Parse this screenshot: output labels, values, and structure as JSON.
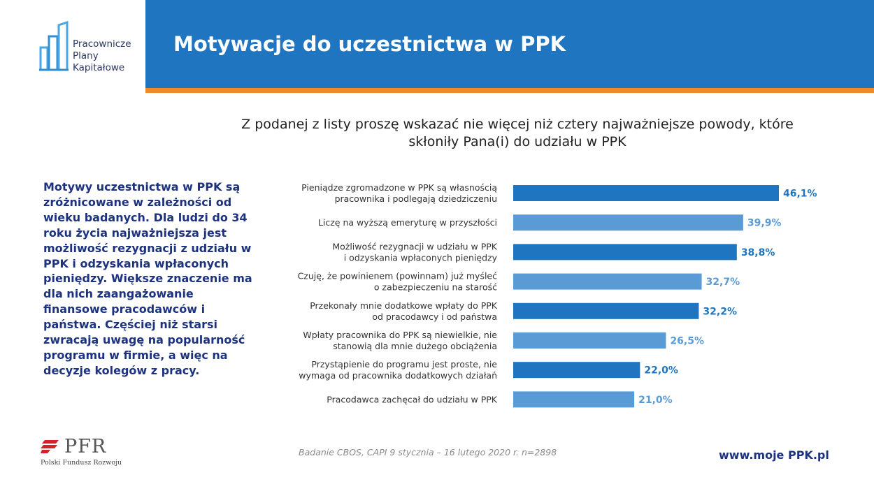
{
  "logo": {
    "lines": [
      "Pracownicze",
      "Plany",
      "Kapitałowe"
    ]
  },
  "header": {
    "title": "Motywacje do uczestnictwa w PPK"
  },
  "question": "Z podanej z listy proszę wskazać nie więcej niż cztery najważniejsze powody, które skłoniły Pana(i) do udziału w PPK",
  "side_text": "Motywy uczestnictwa w PPK są zróżnicowane w zależności od wieku badanych. Dla ludzi do 34 roku życia najważniejsza jest możliwość rezygnacji z udziału w PPK i odzyskania wpłaconych pieniędzy. Większe znaczenie ma dla nich zaangażowanie finansowe pracodawców i państwa. Częściej niż starsi zwracają uwagę na popularność programu w firmie, a więc na decyzje kolegów z pracy.",
  "colors": {
    "dark_blue": "#1f75bf",
    "light_blue": "#5b9bd5",
    "orange": "#f08a24",
    "navy": "#1d3380"
  },
  "chart_data": {
    "type": "bar",
    "orientation": "horizontal",
    "categories": [
      [
        "Pieniądze zgromadzone w PPK są własnością",
        "pracownika i podlegają dziedziczeniu"
      ],
      [
        "Liczę na wyższą emeryturę w przyszłości"
      ],
      [
        "Możliwość rezygnacji w udziału w PPK",
        "i odzyskania wpłaconych pieniędzy"
      ],
      [
        "Czuję, że powinienem (powinnam) już myśleć",
        "o zabezpieczeniu na starość"
      ],
      [
        "Przekonały mnie dodatkowe wpłaty do PPK",
        "od pracodawcy i od państwa"
      ],
      [
        "Wpłaty pracownika do PPK są niewielkie, nie",
        "stanowią dla mnie dużego obciążenia"
      ],
      [
        "Przystąpienie do programu jest proste, nie",
        "wymaga od pracownika dodatkowych działań"
      ],
      [
        "Pracodawca zachęcał do udziału w PPK"
      ]
    ],
    "values": [
      46.1,
      39.9,
      38.8,
      32.7,
      32.2,
      26.5,
      22.0,
      21.0
    ],
    "value_labels": [
      "46,1%",
      "39,9%",
      "38,8%",
      "32,7%",
      "32,2%",
      "26,5%",
      "22,0%",
      "21,0%"
    ],
    "bar_colors": [
      "dark",
      "light",
      "dark",
      "light",
      "dark",
      "light",
      "dark",
      "light"
    ],
    "xlim": [
      0,
      46.1
    ],
    "grid": false
  },
  "footer": {
    "source": "Badanie CBOS, CAPI 9 stycznia – 16 lutego 2020 r. n=2898",
    "url": "www.moje PPK.pl",
    "pfr_name": "PFR",
    "pfr_sub": "Polski Fundusz Rozwoju"
  }
}
